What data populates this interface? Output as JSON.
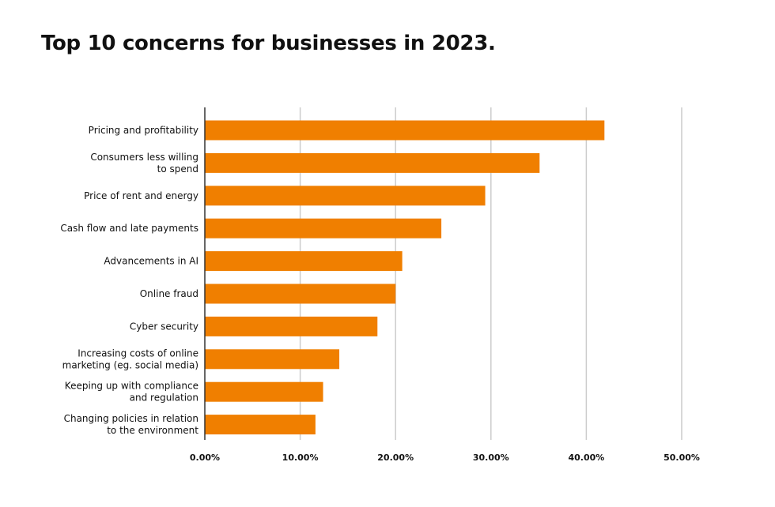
{
  "title": "Top 10 concerns for businesses in 2023.",
  "chart_data": {
    "type": "bar",
    "orientation": "horizontal",
    "title": "Top 10 concerns for businesses in 2023.",
    "categories": [
      [
        "Pricing and profitability"
      ],
      [
        "Consumers less willing",
        "to spend"
      ],
      [
        "Price of rent and energy"
      ],
      [
        "Cash flow and late payments"
      ],
      [
        "Advancements in AI"
      ],
      [
        "Online fraud"
      ],
      [
        "Cyber security"
      ],
      [
        "Increasing costs of online",
        "marketing (eg. social media)"
      ],
      [
        "Keeping up with compliance",
        "and regulation"
      ],
      [
        "Changing policies in relation",
        "to the environment"
      ]
    ],
    "values": [
      41.9,
      35.1,
      29.4,
      24.8,
      20.7,
      20.0,
      18.1,
      14.1,
      12.4,
      11.6
    ],
    "xlim": [
      0,
      50
    ],
    "xticks": [
      "0.00%",
      "10.00%",
      "20.00%",
      "30.00%",
      "40.00%",
      "50.00%"
    ],
    "grid": true,
    "bar_color": "#f07f00",
    "grid_color": "#cccccc",
    "axis_color": "#333333"
  }
}
